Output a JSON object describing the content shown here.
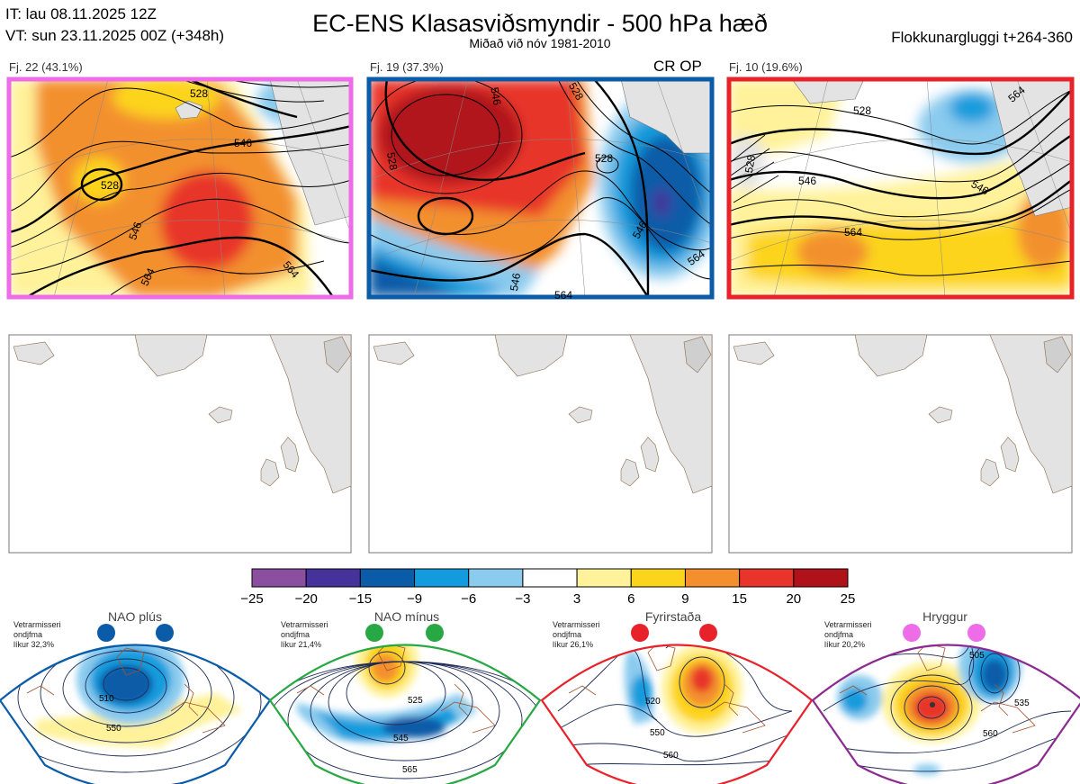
{
  "header": {
    "it_line": "IT: lau 08.11.2025 12Z",
    "vt_line": "VT: sun 23.11.2025 00Z  (+348h)",
    "title": "EC-ENS Klasasviðsmyndir - 500 hPa hæð",
    "subtitle": "Miðað við nóv 1981-2010",
    "window": "Flokkunargluggi t+264-360"
  },
  "panels": [
    {
      "label": "Fj. 22 (43.1%)",
      "border_color": "#ee6ce8",
      "contours": [
        "528",
        "546",
        "546",
        "564",
        "564",
        "528"
      ]
    },
    {
      "label": "Fj. 19 (37.3%)",
      "border_color": "#0a5ba8",
      "tag": "CR OP",
      "contours": [
        "546",
        "528",
        "528",
        "546",
        "564",
        "546",
        "564",
        "528"
      ]
    },
    {
      "label": "Fj. 10 (19.6%)",
      "border_color": "#e8222a",
      "contours": [
        "528",
        "528",
        "546",
        "546",
        "564",
        "564"
      ]
    }
  ],
  "colorbar": {
    "colors": [
      "#8b4fa0",
      "#45329a",
      "#0a5ba8",
      "#139cdd",
      "#8acbee",
      "#ffffff",
      "#fff29a",
      "#fdd41c",
      "#f3902d",
      "#e8342b",
      "#b0121a"
    ],
    "ticks": [
      "−25",
      "−20",
      "−15",
      "−9",
      "−6",
      "−3",
      "3",
      "6",
      "9",
      "15",
      "20",
      "25"
    ]
  },
  "regimes": [
    {
      "name": "NAO plús",
      "note_lines": [
        "Vetrarmisseri",
        "ondjfma",
        "líkur 32,3%"
      ],
      "color": "#0a5ba8",
      "contours": [
        "510",
        "550"
      ]
    },
    {
      "name": "NAO mínus",
      "note_lines": [
        "Vetrarmisseri",
        "ondjfma",
        "líkur 21,4%"
      ],
      "color": "#27a844",
      "contours": [
        "525",
        "545",
        "565"
      ]
    },
    {
      "name": "Fyrirstaða",
      "note_lines": [
        "Vetrarmisseri",
        "ondjfma",
        "líkur 26,1%"
      ],
      "color": "#e8222a",
      "contours": [
        "520",
        "550",
        "560"
      ]
    },
    {
      "name": "Hryggur",
      "note_lines": [
        "Vetrarmisseri",
        "ondjfma",
        "líkur 20,2%"
      ],
      "color": "#ee6ce8",
      "frame_color": "#8b2a8f",
      "contours": [
        "505",
        "535",
        "560"
      ]
    }
  ]
}
